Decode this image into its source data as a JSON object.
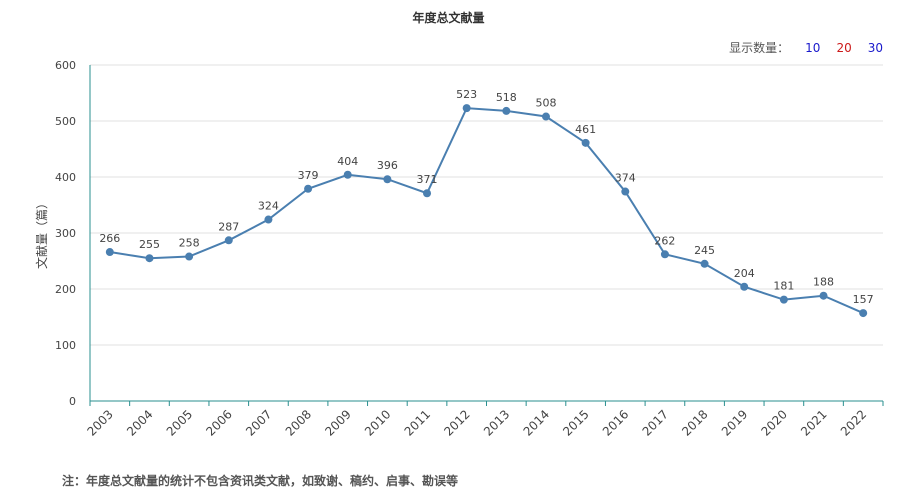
{
  "page": {
    "title": "年度总文献量",
    "count_selector": {
      "label": "显示数量：",
      "options": [
        {
          "label": "10",
          "color": "#1a1acc"
        },
        {
          "label": "20",
          "color": "#cc1a1a"
        },
        {
          "label": "30",
          "color": "#1a1acc"
        }
      ]
    },
    "footnote": "注：年度总文献量的统计不包含资讯类文献，如致谢、稿约、启事、勘误等"
  },
  "chart_data": {
    "type": "line",
    "title": "年度总文献量",
    "xlabel": "",
    "ylabel": "文献量（篇）",
    "ylim": [
      0,
      600
    ],
    "yticks": [
      0,
      100,
      200,
      300,
      400,
      500,
      600
    ],
    "grid": true,
    "x": [
      "2003",
      "2004",
      "2005",
      "2006",
      "2007",
      "2008",
      "2009",
      "2010",
      "2011",
      "2012",
      "2013",
      "2014",
      "2015",
      "2016",
      "2017",
      "2018",
      "2019",
      "2020",
      "2021",
      "2022"
    ],
    "series": [
      {
        "values": [
          266,
          255,
          258,
          287,
          324,
          379,
          404,
          396,
          371,
          523,
          518,
          508,
          461,
          374,
          262,
          245,
          204,
          181,
          188,
          157
        ],
        "color": "#4a7fb0"
      }
    ],
    "axis_color": "#2a8f8f",
    "grid_color": "#e0e0e0"
  }
}
